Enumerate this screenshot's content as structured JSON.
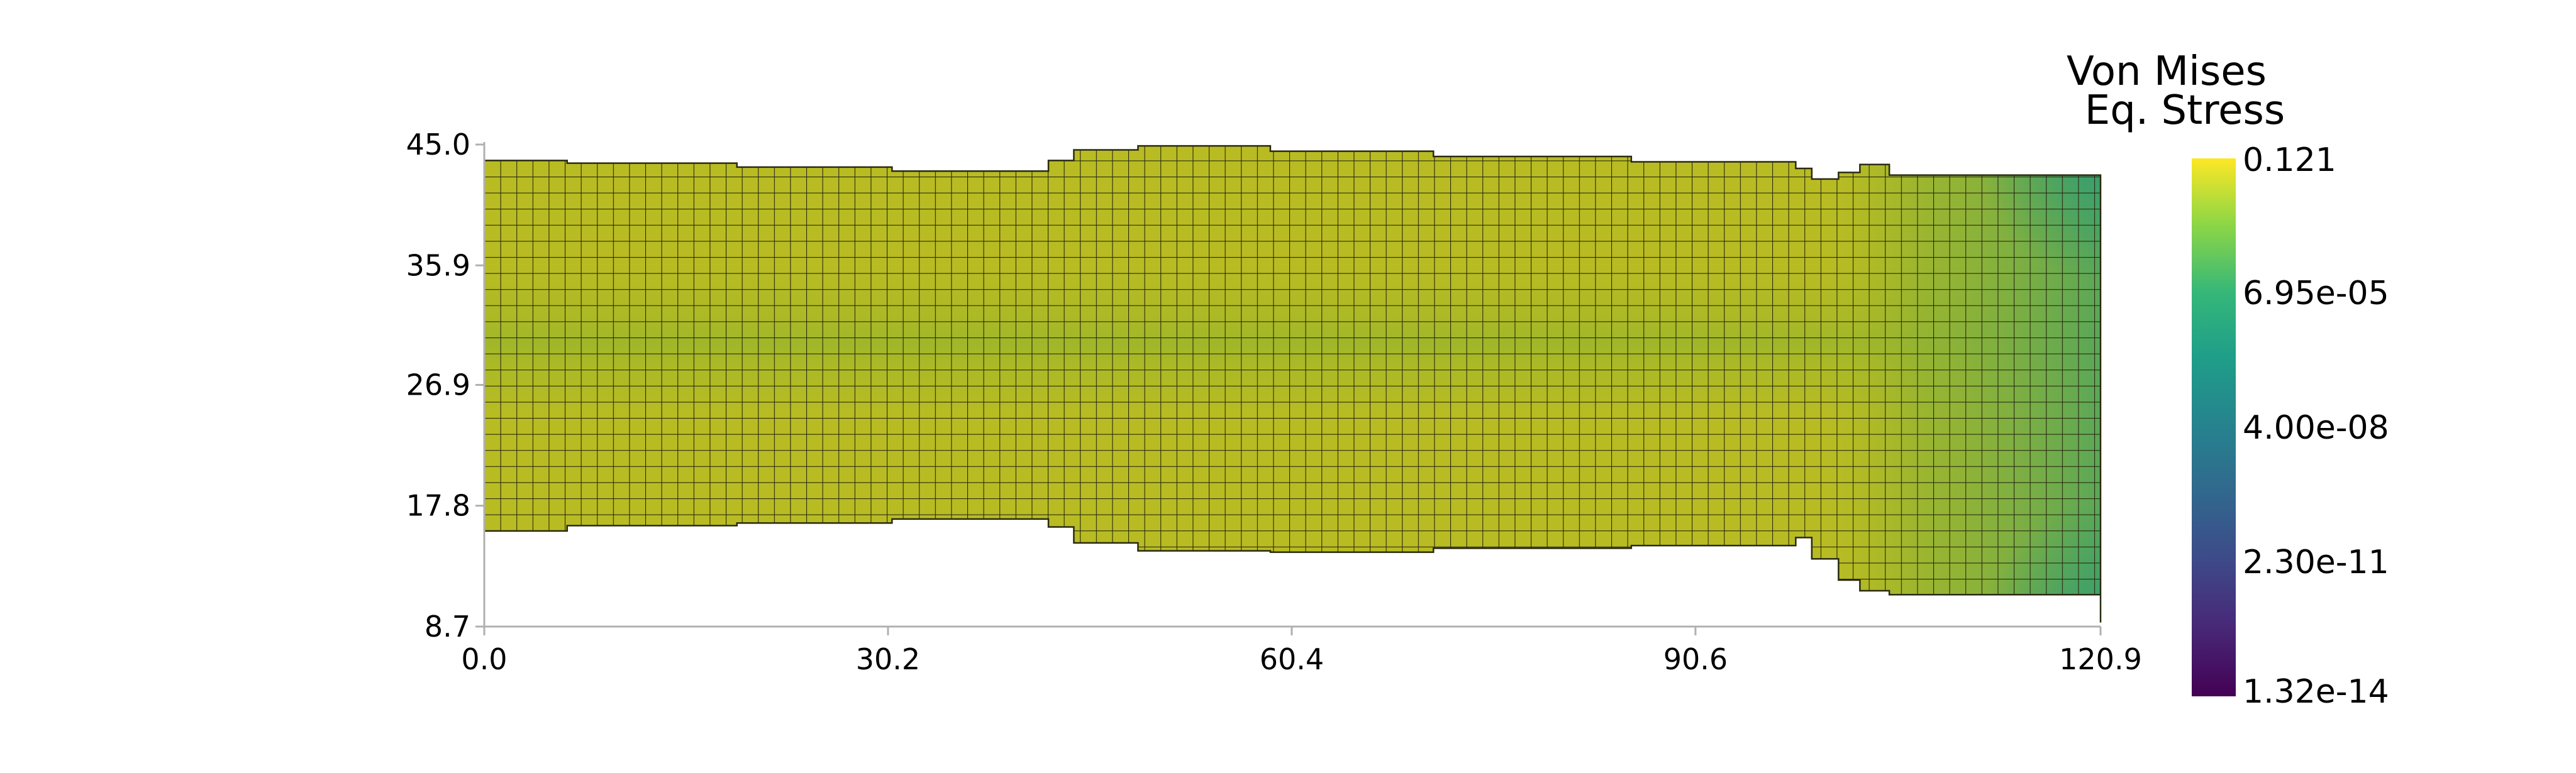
{
  "chart_data": {
    "type": "heatmap",
    "description_scalar": "Von Mises Eq. Stress",
    "colorbar": {
      "title_line1": "Von Mises",
      "title_line2": "Eq. Stress",
      "tick_labels": [
        "0.121",
        "6.95e-05",
        "4.00e-08",
        "2.30e-11",
        "1.32e-14"
      ],
      "range": [
        1.32e-14,
        0.121
      ],
      "scale": "log",
      "colormap": "viridis"
    },
    "x_axis": {
      "ticks": [
        0.0,
        30.2,
        60.4,
        90.6,
        120.9
      ],
      "tick_labels": [
        "0.0",
        "30.2",
        "60.4",
        "90.6",
        "120.9"
      ],
      "range": [
        0.0,
        120.9
      ]
    },
    "y_axis": {
      "ticks": [
        8.7,
        17.8,
        26.9,
        35.9,
        45.0
      ],
      "tick_labels": [
        "8.7",
        "17.8",
        "26.9",
        "35.9",
        "45.0"
      ],
      "range": [
        8.7,
        45.0
      ]
    },
    "mesh": {
      "element_size": 1.28,
      "columns_x": [
        0.0,
        6.2,
        18.9,
        30.5,
        42.2,
        44.1,
        48.9,
        58.8,
        71.0,
        85.8,
        98.1,
        99.3,
        101.3,
        102.9,
        105.1,
        120.9
      ],
      "top_y": [
        43.8,
        43.6,
        43.3,
        43.0,
        43.8,
        44.6,
        44.9,
        44.5,
        44.1,
        43.7,
        43.2,
        42.4,
        42.9,
        43.5,
        42.7,
        42.5
      ],
      "bottom_y": [
        15.9,
        16.3,
        16.5,
        16.8,
        16.2,
        15.0,
        14.4,
        14.3,
        14.6,
        14.8,
        15.4,
        13.8,
        12.2,
        11.4,
        11.1,
        9.0
      ],
      "colors": {
        "base": "#b8bc22",
        "mid_band": "#9cb52a",
        "end_region": "#58a85a",
        "end_corners": "#38a06e"
      }
    }
  }
}
